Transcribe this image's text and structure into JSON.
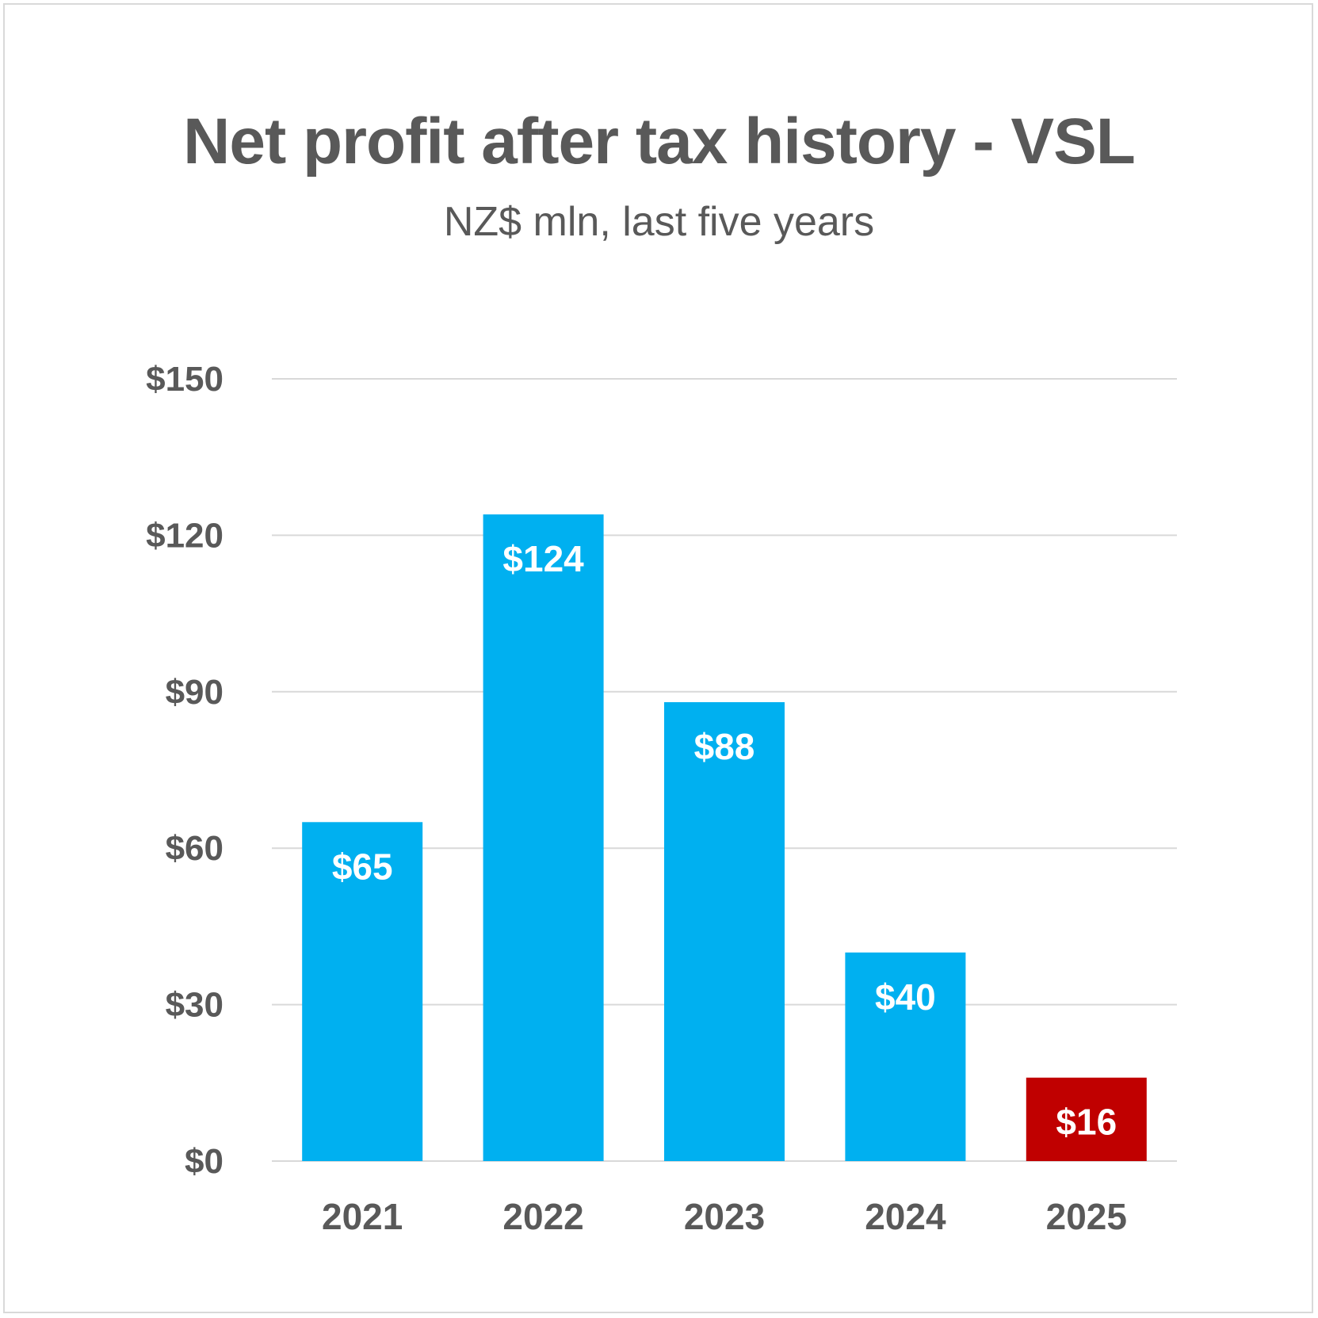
{
  "chart_data": {
    "type": "bar",
    "title": "Net profit after tax history - VSL",
    "subtitle": "NZ$ mln, last five years",
    "categories": [
      "2021",
      "2022",
      "2023",
      "2024",
      "2025"
    ],
    "values": [
      65,
      124,
      88,
      40,
      16
    ],
    "data_labels": [
      "$65",
      "$124",
      "$88",
      "$40",
      "$16"
    ],
    "yticks": [
      0,
      30,
      60,
      90,
      120,
      150
    ],
    "ytick_labels": [
      "$0",
      "$30",
      "$60",
      "$90",
      "$120",
      "$150"
    ],
    "ylim": [
      0,
      150
    ],
    "grid": true,
    "legend": "none",
    "colors": {
      "bar": "#00b0f0",
      "highlight": "#c00000",
      "gridline": "#d9d9d9",
      "text": "#595959"
    },
    "highlight_index": 4
  }
}
